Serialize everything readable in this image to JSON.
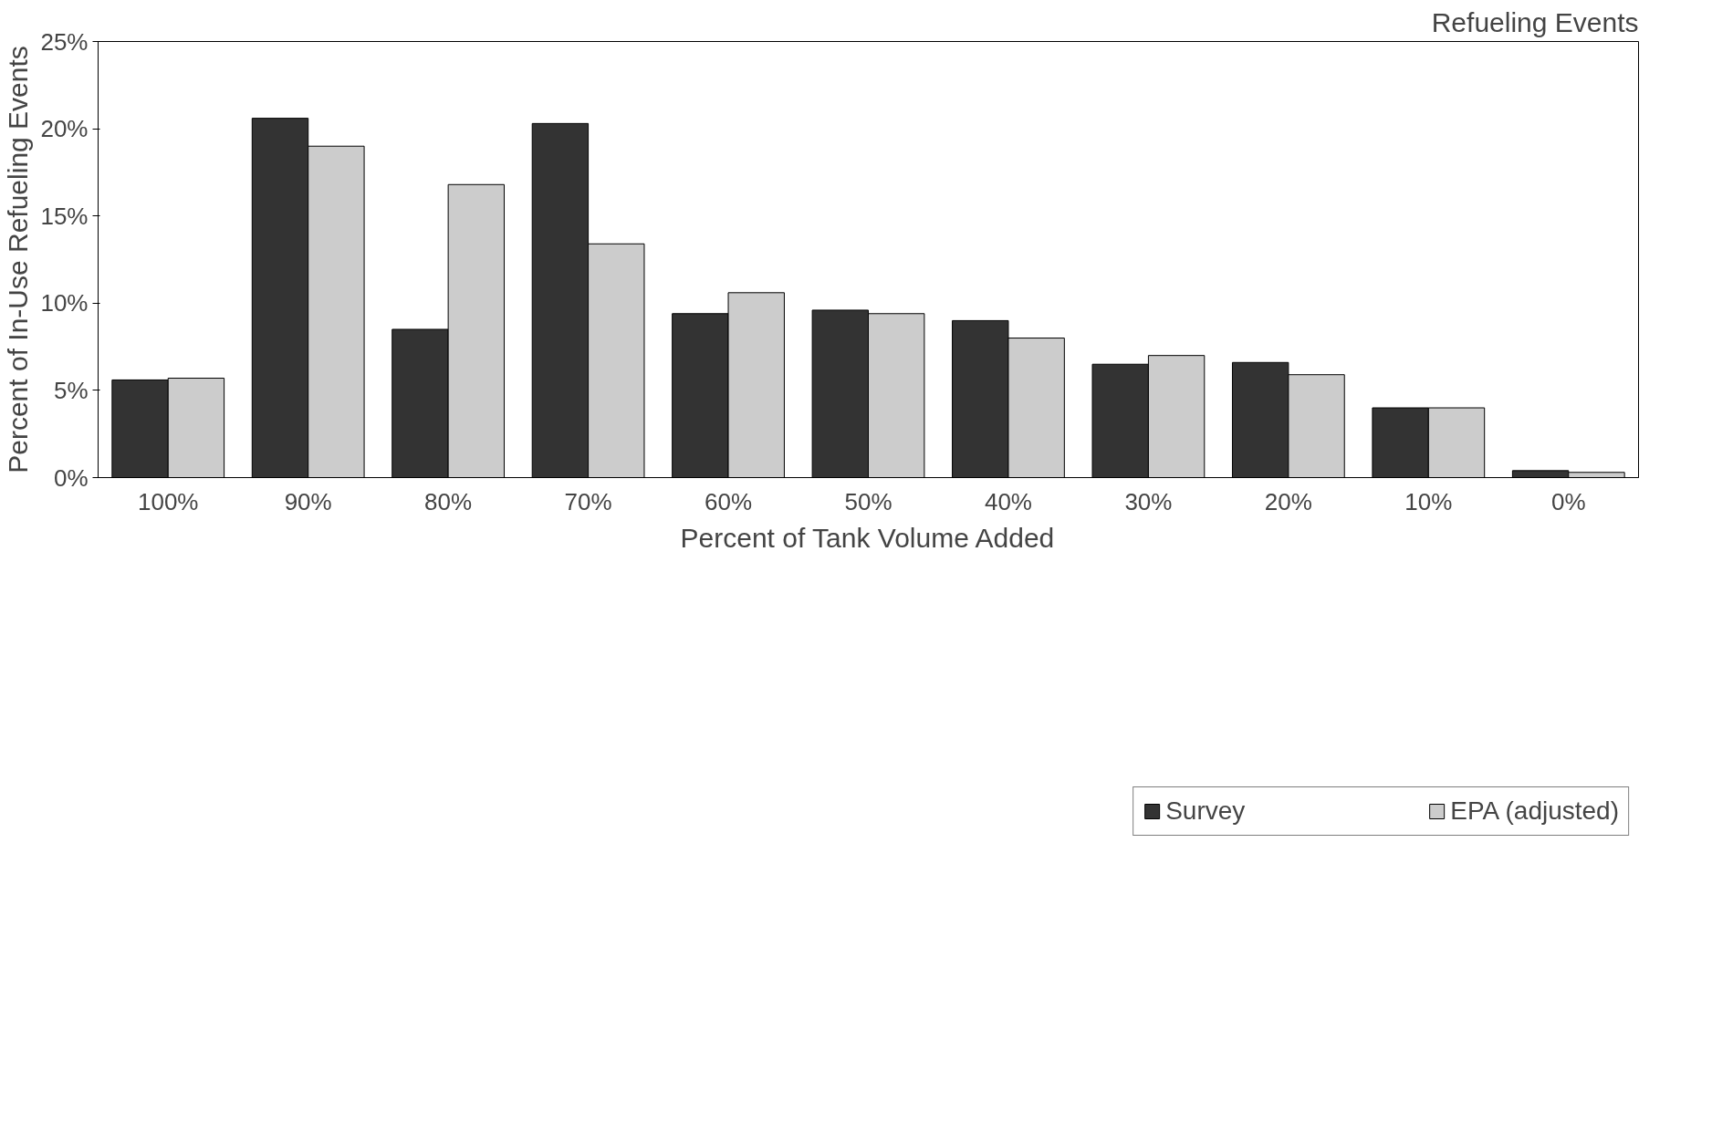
{
  "chart_data": {
    "type": "bar",
    "title": "Refueling Events",
    "xlabel": "Percent of Tank Volume Added",
    "ylabel": "Percent of In-Use Refueling Events",
    "categories": [
      "100%",
      "90%",
      "80%",
      "70%",
      "60%",
      "50%",
      "40%",
      "30%",
      "20%",
      "10%",
      "0%"
    ],
    "series": [
      {
        "name": "Survey",
        "color": "#333333",
        "values": [
          5.6,
          20.6,
          8.5,
          20.3,
          9.4,
          9.6,
          9.0,
          6.5,
          6.6,
          4.0,
          0.4
        ]
      },
      {
        "name": "EPA (adjusted)",
        "color": "#cccccc",
        "values": [
          5.7,
          19.0,
          16.8,
          13.4,
          10.6,
          9.4,
          8.0,
          7.0,
          5.9,
          4.0,
          0.3
        ]
      }
    ],
    "ylim": [
      0,
      25
    ],
    "yticks": [
      {
        "value": 0,
        "label": "0%"
      },
      {
        "value": 5,
        "label": "5%"
      },
      {
        "value": 10,
        "label": "10%"
      },
      {
        "value": 15,
        "label": "15%"
      },
      {
        "value": 20,
        "label": "20%"
      },
      {
        "value": 25,
        "label": "25%"
      }
    ],
    "grid": false,
    "legend": "bottom"
  }
}
